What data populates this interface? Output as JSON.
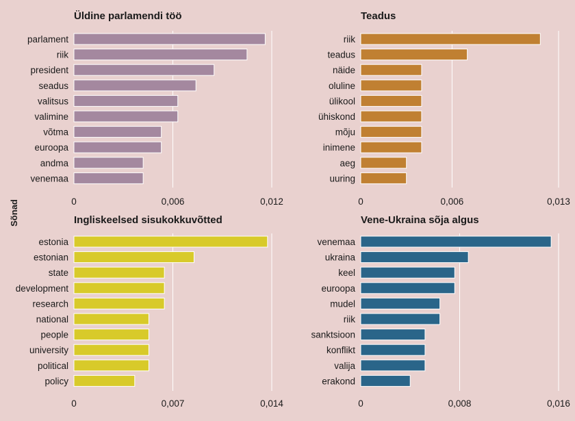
{
  "y_axis_label": "Sõnad",
  "chart_data": [
    {
      "type": "bar",
      "orientation": "horizontal",
      "title": "Üldine parlamendi töö",
      "color": "#a4889f",
      "categories": [
        "parlament",
        "riik",
        "president",
        "seadus",
        "valitsus",
        "valimine",
        "võtma",
        "euroopa",
        "andma",
        "venemaa"
      ],
      "values": [
        0.0116,
        0.0105,
        0.0085,
        0.0074,
        0.0063,
        0.0063,
        0.0053,
        0.0053,
        0.0042,
        0.0042
      ],
      "xlim": [
        0,
        0.012
      ],
      "ticks": [
        0,
        0.006,
        0.012
      ],
      "tick_labels": [
        "0",
        "0,006",
        "0,012"
      ],
      "ylabel": "Sõnad"
    },
    {
      "type": "bar",
      "orientation": "horizontal",
      "title": "Teadus",
      "color": "#c08032",
      "categories": [
        "riik",
        "teadus",
        "näide",
        "oluline",
        "ülikool",
        "ühiskond",
        "mõju",
        "inimene",
        "aeg",
        "uuring"
      ],
      "values": [
        0.0118,
        0.007,
        0.004,
        0.004,
        0.004,
        0.004,
        0.004,
        0.004,
        0.003,
        0.003
      ],
      "xlim": [
        0,
        0.013
      ],
      "ticks": [
        0,
        0.006,
        0.013
      ],
      "tick_labels": [
        "0",
        "0,006",
        "0,013"
      ],
      "ylabel": "Sõnad"
    },
    {
      "type": "bar",
      "orientation": "horizontal",
      "title": "Ingliskeelsed sisukokkuvõtted",
      "color": "#d8ca2a",
      "categories": [
        "estonia",
        "estonian",
        "state",
        "development",
        "research",
        "national",
        "people",
        "university",
        "political",
        "policy"
      ],
      "values": [
        0.0137,
        0.0085,
        0.0064,
        0.0064,
        0.0064,
        0.0053,
        0.0053,
        0.0053,
        0.0053,
        0.0043
      ],
      "xlim": [
        0,
        0.014
      ],
      "ticks": [
        0,
        0.007,
        0.014
      ],
      "tick_labels": [
        "0",
        "0,007",
        "0,014"
      ],
      "ylabel": "Sõnad"
    },
    {
      "type": "bar",
      "orientation": "horizontal",
      "title": "Vene-Ukraina sõja algus",
      "color": "#2a6589",
      "categories": [
        "venemaa",
        "ukraina",
        "keel",
        "euroopa",
        "mudel",
        "riik",
        "sanktsioon",
        "konflikt",
        "valija",
        "erakond"
      ],
      "values": [
        0.0154,
        0.0087,
        0.0076,
        0.0076,
        0.0064,
        0.0064,
        0.0052,
        0.0052,
        0.0052,
        0.004
      ],
      "xlim": [
        0,
        0.016
      ],
      "ticks": [
        0,
        0.008,
        0.016
      ],
      "tick_labels": [
        "0",
        "0,008",
        "0,016"
      ],
      "ylabel": "Sõnad"
    }
  ]
}
